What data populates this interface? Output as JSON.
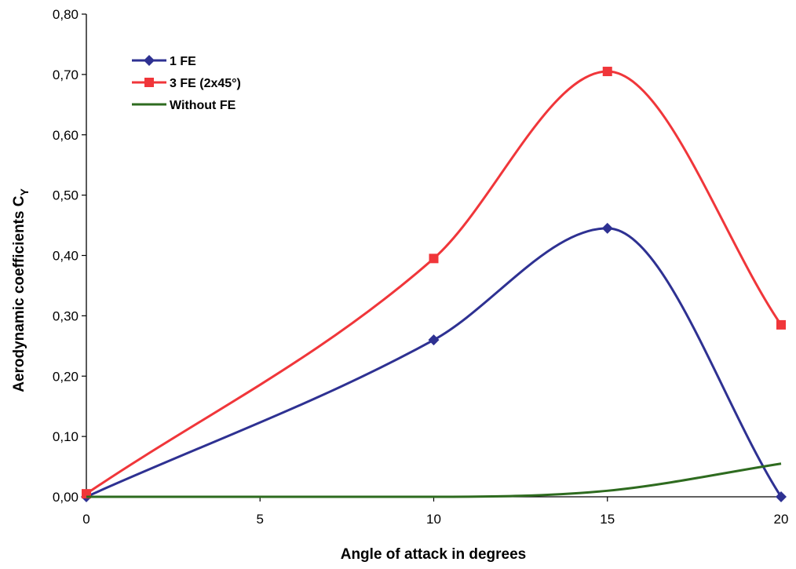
{
  "chart_data": {
    "type": "line",
    "title": "",
    "xlabel": "Angle of attack in degrees",
    "ylabel": "Aerodynamic coefficients C",
    "ylabel_subscript": "Y",
    "xlim": [
      0,
      20
    ],
    "ylim": [
      0,
      0.8
    ],
    "xticks": [
      0,
      5,
      10,
      15,
      20
    ],
    "xtick_labels": [
      "0",
      "5",
      "10",
      "15",
      "20"
    ],
    "yticks": [
      0,
      0.1,
      0.2,
      0.3,
      0.4,
      0.5,
      0.6,
      0.7,
      0.8
    ],
    "ytick_labels": [
      "0,00",
      "0,10",
      "0,20",
      "0,30",
      "0,40",
      "0,50",
      "0,60",
      "0,70",
      "0,80"
    ],
    "grid": false,
    "legend_position": "top-left",
    "series": [
      {
        "name": "1 FE",
        "color": "#2e3192",
        "marker": "diamond",
        "x": [
          0,
          10,
          15,
          20
        ],
        "y": [
          0.0,
          0.26,
          0.445,
          0.0
        ]
      },
      {
        "name": "3 FE (2x45°)",
        "color": "#f0363a",
        "marker": "square",
        "x": [
          0,
          10,
          15,
          20
        ],
        "y": [
          0.005,
          0.395,
          0.705,
          0.285
        ]
      },
      {
        "name": "Without FE",
        "color": "#2e6b1f",
        "marker": "none",
        "x": [
          0,
          10,
          15,
          20
        ],
        "y": [
          0.0,
          0.0,
          0.01,
          0.055
        ]
      }
    ]
  }
}
